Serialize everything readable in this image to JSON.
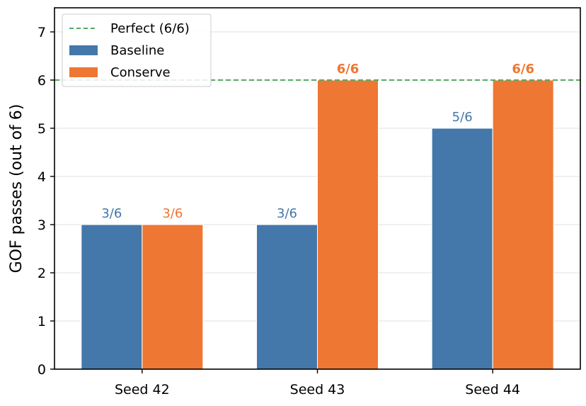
{
  "chart_data": {
    "type": "bar",
    "categories": [
      "Seed 42",
      "Seed 43",
      "Seed 44"
    ],
    "series": [
      {
        "name": "Baseline",
        "values": [
          3,
          3,
          5
        ],
        "labels": [
          "3/6",
          "3/6",
          "5/6"
        ],
        "color": "#4477aa",
        "label_bold": false
      },
      {
        "name": "Conserve",
        "values": [
          3,
          6,
          6
        ],
        "labels": [
          "3/6",
          "6/6",
          "6/6"
        ],
        "color": "#ee7733",
        "label_bold": [
          false,
          true,
          true
        ]
      }
    ],
    "reference_line": {
      "name": "Perfect (6/6)",
      "value": 6,
      "color": "#55aa66",
      "style": "dashed"
    },
    "ylabel": "GOF passes (out of 6)",
    "xlabel": "",
    "ylim": [
      0,
      7.5
    ],
    "yticks": [
      0,
      1,
      2,
      3,
      4,
      5,
      6,
      7
    ],
    "grid": "horizontal",
    "legend_position": "top-left"
  }
}
